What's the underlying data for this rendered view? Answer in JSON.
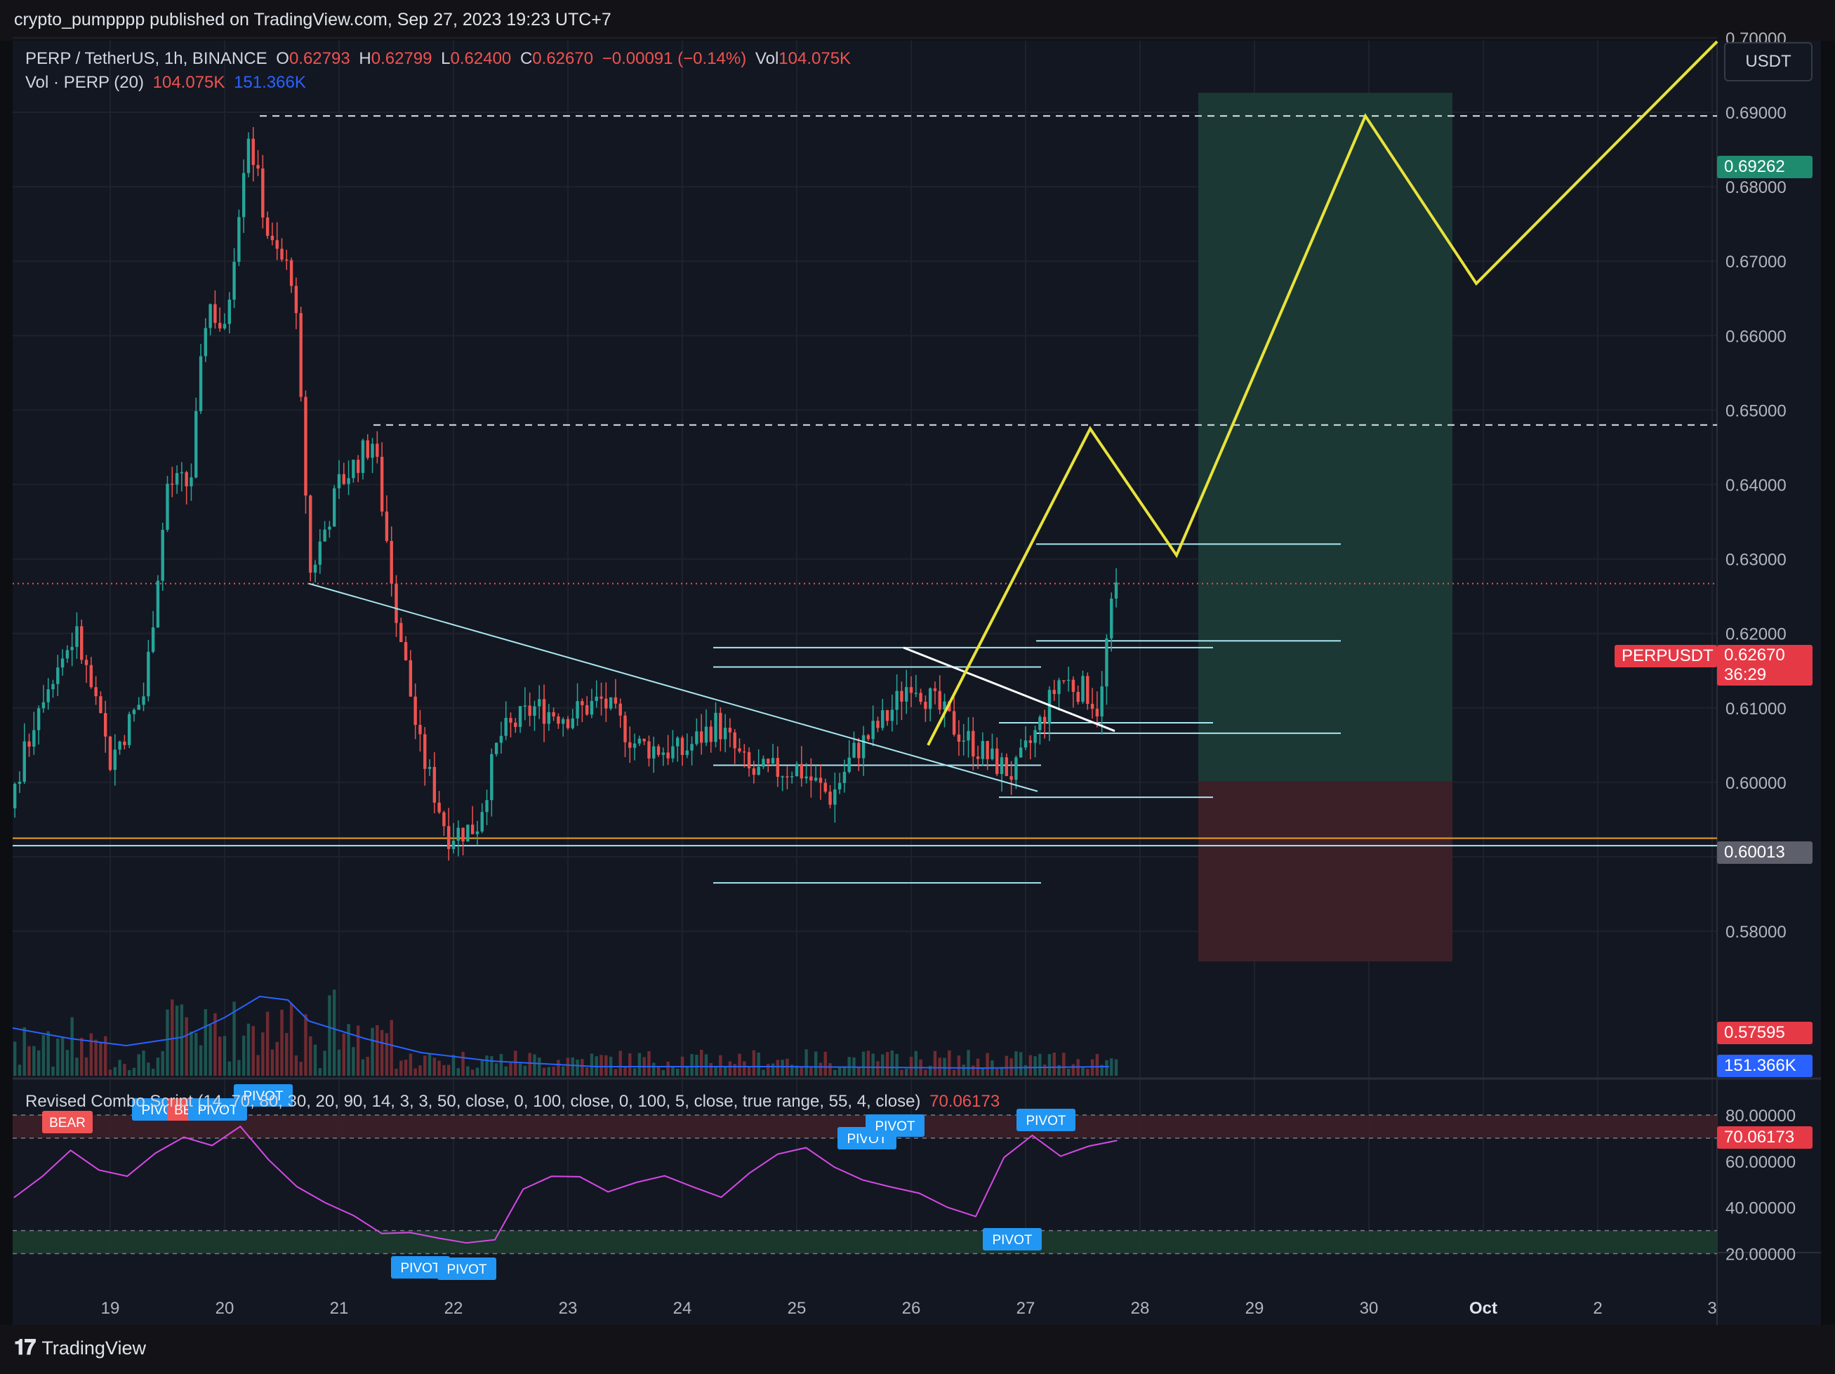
{
  "header": {
    "publisher_line": "crypto_pumpppp published on TradingView.com, Sep 27, 2023 19:23 UTC+7"
  },
  "legend": {
    "symbol": "PERP / TetherUS, 1h, BINANCE",
    "open_label": "O",
    "open": "0.62793",
    "high_label": "H",
    "high": "0.62799",
    "low_label": "L",
    "low": "0.62400",
    "close_label": "C",
    "close": "0.62670",
    "change": "−0.00091 (−0.14%)",
    "vol_label": "Vol",
    "vol": "104.075K",
    "vol_indicator": "Vol · PERP (20)",
    "vol_value": "104.075K",
    "vol_ma": "151.366K"
  },
  "currency": "USDT",
  "price_axis": {
    "ticks": [
      "0.70000",
      "0.69000",
      "0.68000",
      "0.67000",
      "0.66000",
      "0.65000",
      "0.64000",
      "0.63000",
      "0.62000",
      "0.61000",
      "0.60000",
      "0.59000",
      "0.58000"
    ],
    "tags": {
      "target": "0.69262",
      "symbol": "PERPUSDT",
      "last": "0.62670",
      "countdown": "36:29",
      "entry": "0.60013",
      "stop": "0.57595",
      "vol_ma": "151.366K"
    }
  },
  "oscillator": {
    "legend": "Revised Combo Script (14, 70, 80, 30, 20, 90, 14, 3, 3, 50, close, 0, 100, close, 0, 100, 5, close, true range, 55, 4, close)",
    "value": "70.06173",
    "ticks": [
      "80.00000",
      "60.00000",
      "40.00000",
      "20.00000"
    ],
    "tag": "70.06173",
    "labels": [
      "BEAR",
      "PIVOT",
      "BEAR",
      "PIVOT",
      "PIVOT",
      "PIVOT",
      "PIVOT",
      "PIVOT",
      "PIVOT",
      "PIVOT",
      "PIVOT"
    ]
  },
  "time_axis": [
    "19",
    "20",
    "21",
    "22",
    "23",
    "24",
    "25",
    "26",
    "27",
    "28",
    "29",
    "30",
    "Oct",
    "2",
    "3"
  ],
  "footer": {
    "brand": "TradingView"
  },
  "colors": {
    "up": "#26a69a",
    "down": "#ef5350",
    "projection": "#e8e33a",
    "vol_ma": "#2962ff",
    "osc": "#d649e6",
    "profit_zone": "#1b3a36",
    "loss_zone": "#3d2129"
  },
  "chart_data": [
    {
      "type": "candlestick",
      "title": "PERP / TetherUS, 1h, BINANCE",
      "x": [
        "19",
        "20",
        "21",
        "22",
        "23",
        "24",
        "25",
        "26",
        "27",
        "28",
        "29",
        "30",
        "Oct",
        "2",
        "3"
      ],
      "ylim": [
        0.574,
        0.701
      ],
      "series": [
        {
          "name": "daily_closes_approx",
          "x": [
            "18",
            "19",
            "20",
            "21",
            "22",
            "23",
            "24",
            "25",
            "26",
            "27"
          ],
          "values": [
            0.595,
            0.608,
            0.685,
            0.627,
            0.594,
            0.607,
            0.604,
            0.602,
            0.612,
            0.6267
          ]
        },
        {
          "name": "projection",
          "x": [
            "26.2",
            "27.6",
            "28.3",
            "30.0",
            "30.97",
            "3.1"
          ],
          "values": [
            0.605,
            0.6475,
            0.6305,
            0.6895,
            0.667,
            0.6995
          ]
        }
      ],
      "levels": [
        0.6895,
        0.648,
        0.5925,
        0.5915
      ],
      "position": {
        "entry": 0.60013,
        "target": 0.69262,
        "stop": 0.57595
      }
    },
    {
      "type": "line",
      "title": "Revised Combo Script",
      "ylim": [
        17,
        83
      ],
      "series": [
        {
          "values": [
            46,
            55,
            66,
            58,
            52,
            65,
            72,
            68,
            74,
            60,
            49,
            42,
            38,
            30,
            28,
            25,
            24,
            28,
            48,
            54,
            53,
            48,
            50,
            52,
            49,
            46,
            55,
            62,
            64,
            57,
            52,
            48,
            45,
            42,
            35,
            62,
            70,
            62,
            65,
            70
          ]
        }
      ],
      "bands": [
        [
          70,
          80
        ],
        [
          20,
          30
        ]
      ]
    }
  ]
}
